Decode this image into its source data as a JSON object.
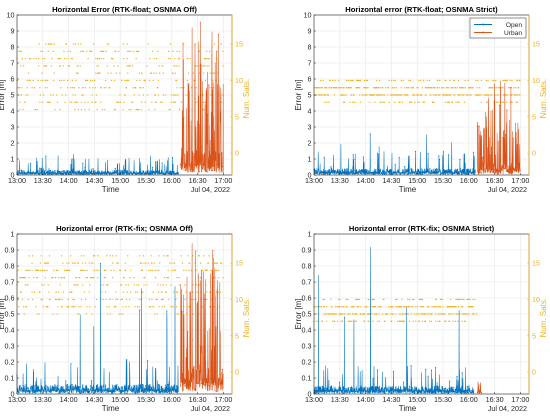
{
  "chart_data": [
    {
      "type": "line",
      "title": "Horizontal Error (RTK-float; OSNMA Off)",
      "xlabel": "Time",
      "ylabel": "Error [m]",
      "y2label": "Num. Sats.",
      "date_label": "Jul 04, 2022",
      "x_ticks": [
        "13:00",
        "13:30",
        "14:00",
        "14:30",
        "15:00",
        "15:30",
        "16:00",
        "16:30",
        "17:00"
      ],
      "xlim": [
        "13:00",
        "17:10"
      ],
      "ylim": [
        0,
        10
      ],
      "y_ticks": [
        0,
        1,
        2,
        3,
        4,
        5,
        6,
        7,
        8,
        9,
        10
      ],
      "y2lim": [
        -3,
        19
      ],
      "y2_ticks": [
        0,
        5,
        10,
        15
      ],
      "grid": true,
      "legend": [],
      "series": [
        {
          "name": "Open",
          "color": "#0072BD",
          "x_range": [
            "13:00",
            "16:08"
          ],
          "typical_max": 0.3,
          "spike_max": 1.4
        },
        {
          "name": "Urban",
          "color": "#D95319",
          "x_range": [
            "16:10",
            "17:00"
          ],
          "typical_max": 1.5,
          "spike_max": 10
        },
        {
          "name": "Num. Sats.",
          "color": "#EDB120",
          "axis": "right",
          "x_range": [
            "13:00",
            "17:00"
          ],
          "band": [
            6,
            15
          ]
        }
      ]
    },
    {
      "type": "line",
      "title": "Horizontal error (RTK-float; OSNMA Strict)",
      "xlabel": "Time",
      "ylabel": "Error [m]",
      "y2label": "Num. Sats.",
      "date_label": "Jul 04, 2022",
      "x_ticks": [
        "13:00",
        "13:30",
        "14:00",
        "14:30",
        "15:00",
        "15:30",
        "16:00",
        "16:30",
        "17:00"
      ],
      "xlim": [
        "13:00",
        "17:10"
      ],
      "ylim": [
        0,
        10
      ],
      "y_ticks": [
        0,
        1,
        2,
        3,
        4,
        5,
        6,
        7,
        8,
        9,
        10
      ],
      "y2lim": [
        -3,
        19
      ],
      "y2_ticks": [
        0,
        5,
        10,
        15
      ],
      "grid": true,
      "legend": [
        "Open",
        "Urban"
      ],
      "legend_position": "top-right",
      "series": [
        {
          "name": "Open",
          "color": "#0072BD",
          "x_range": [
            "13:00",
            "16:08"
          ],
          "typical_max": 0.4,
          "spike_max": 2.7
        },
        {
          "name": "Urban",
          "color": "#D95319",
          "x_range": [
            "16:10",
            "17:00"
          ],
          "typical_max": 0.8,
          "spike_max": 6.5
        },
        {
          "name": "Num. Sats.",
          "color": "#EDB120",
          "axis": "right",
          "x_range": [
            "13:00",
            "17:00"
          ],
          "band": [
            7,
            10
          ]
        }
      ]
    },
    {
      "type": "line",
      "title": "Horizontal error (RTK-fix; OSNMA Off)",
      "xlabel": "Time",
      "ylabel": "Error [m]",
      "y2label": "Num. Sats.",
      "date_label": "Jul 04, 2022",
      "x_ticks": [
        "13:00",
        "13:30",
        "14:00",
        "14:30",
        "15:00",
        "15:30",
        "16:00",
        "16:30",
        "17:00"
      ],
      "xlim": [
        "13:00",
        "17:10"
      ],
      "ylim": [
        0,
        1
      ],
      "y_ticks": [
        0,
        0.1,
        0.2,
        0.3,
        0.4,
        0.5,
        0.6,
        0.7,
        0.8,
        0.9,
        1
      ],
      "y2lim": [
        -3,
        19
      ],
      "y2_ticks": [
        0,
        5,
        10,
        15
      ],
      "grid": true,
      "legend": [],
      "series": [
        {
          "name": "Open",
          "color": "#0072BD",
          "x_range": [
            "13:00",
            "16:08"
          ],
          "typical_max": 0.06,
          "spike_max": 0.93
        },
        {
          "name": "Urban",
          "color": "#D95319",
          "x_range": [
            "16:10",
            "17:00"
          ],
          "typical_max": 0.2,
          "spike_max": 0.96
        },
        {
          "name": "Num. Sats.",
          "color": "#EDB120",
          "axis": "right",
          "x_range": [
            "13:00",
            "17:00"
          ],
          "band": [
            8,
            16
          ]
        }
      ]
    },
    {
      "type": "line",
      "title": "Horizontal error (RTK-fix; OSNMA Strict)",
      "xlabel": "Time",
      "ylabel": "Error [m]",
      "y2label": "Num. Sats.",
      "date_label": "Jul 04, 2022",
      "x_ticks": [
        "13:00",
        "13:30",
        "14:00",
        "14:30",
        "15:00",
        "15:30",
        "16:00",
        "16:30",
        "17:00"
      ],
      "xlim": [
        "13:00",
        "17:10"
      ],
      "ylim": [
        0,
        1
      ],
      "y_ticks": [
        0,
        0.1,
        0.2,
        0.3,
        0.4,
        0.5,
        0.6,
        0.7,
        0.8,
        0.9,
        1
      ],
      "y2lim": [
        -3,
        19
      ],
      "y2_ticks": [
        0,
        5,
        10,
        15
      ],
      "grid": true,
      "legend": [],
      "series": [
        {
          "name": "Open",
          "color": "#0072BD",
          "x_range": [
            "13:00",
            "16:06"
          ],
          "typical_max": 0.05,
          "spike_max": 0.94
        },
        {
          "name": "Urban",
          "color": "#D95319",
          "x_range": [
            "16:10",
            "16:15"
          ],
          "typical_max": 0.03,
          "spike_max": 0.05
        },
        {
          "name": "Num. Sats.",
          "color": "#EDB120",
          "axis": "right",
          "x_range": [
            "13:00",
            "16:10"
          ],
          "band": [
            7,
            10
          ]
        }
      ]
    }
  ]
}
